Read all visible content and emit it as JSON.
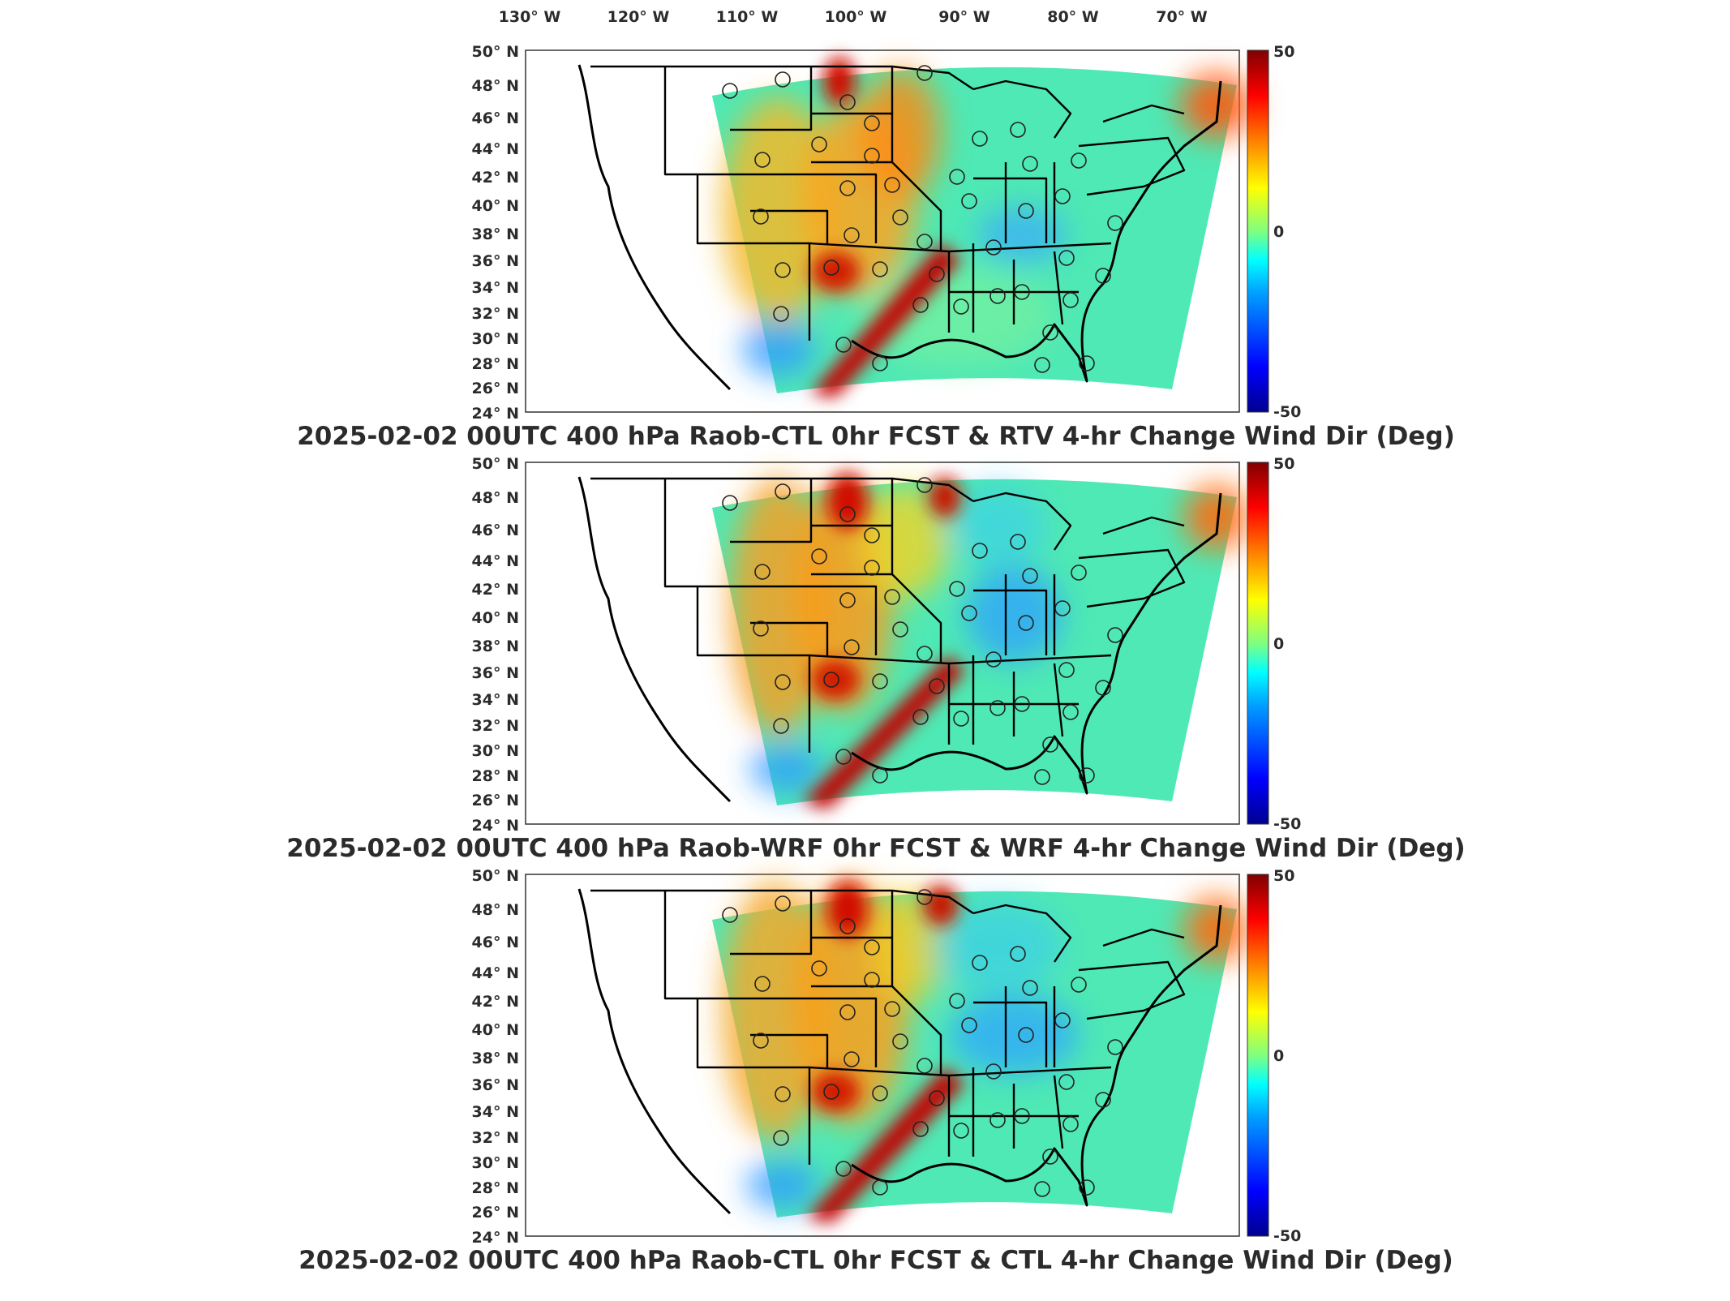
{
  "lon_ticks": [
    "130° W",
    "120° W",
    "110° W",
    "100° W",
    "90° W",
    "80° W",
    "70° W"
  ],
  "lat_ticks": [
    "50° N",
    "48° N",
    "46° N",
    "44° N",
    "42° N",
    "40° N",
    "38° N",
    "36° N",
    "34° N",
    "32° N",
    "30° N",
    "28° N",
    "26° N",
    "24° N"
  ],
  "colorbar": {
    "max_label": "50",
    "mid_label": "0",
    "min_label": "-50",
    "colors": [
      "#00008f",
      "#0000ff",
      "#00a0ff",
      "#00ffff",
      "#80ff80",
      "#ffff00",
      "#ff8000",
      "#ff0000",
      "#800000"
    ]
  },
  "panels": [
    {
      "title": "2025-02-02 00UTC 400 hPa Raob-CTL 0hr FCST & RTV 4-hr Change Wind Dir (Deg)"
    },
    {
      "title": "2025-02-02 00UTC 400 hPa Raob-WRF 0hr FCST & WRF 4-hr Change Wind Dir (Deg)"
    },
    {
      "title": "2025-02-02 00UTC 400 hPa Raob-CTL 0hr FCST & CTL 4-hr Change Wind Dir (Deg)"
    }
  ]
}
